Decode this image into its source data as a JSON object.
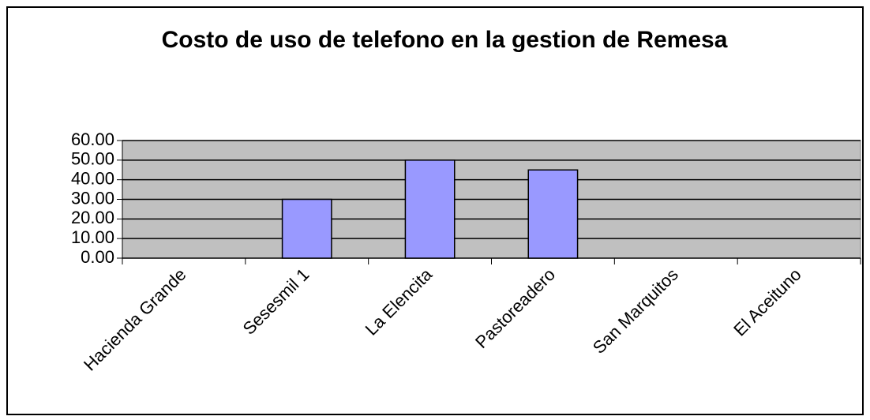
{
  "chart_data": {
    "type": "bar",
    "title": "Costo de uso de telefono en la gestion de Remesa",
    "categories": [
      "Hacienda Grande",
      "Sesesmil 1",
      "La Elencita",
      "Pastoreadero",
      "San Marquitos",
      "El Aceituno"
    ],
    "values": [
      0,
      30,
      50,
      45,
      0,
      0
    ],
    "color": "#9999ff",
    "ylim": [
      0,
      60
    ],
    "yticks": [
      {
        "value": 0,
        "label": "0.00"
      },
      {
        "value": 10,
        "label": "10.00"
      },
      {
        "value": 20,
        "label": "20.00"
      },
      {
        "value": 30,
        "label": "30.00"
      },
      {
        "value": 40,
        "label": "40.00"
      },
      {
        "value": 50,
        "label": "50.00"
      },
      {
        "value": 60,
        "label": "60.00"
      }
    ],
    "grid": true
  }
}
